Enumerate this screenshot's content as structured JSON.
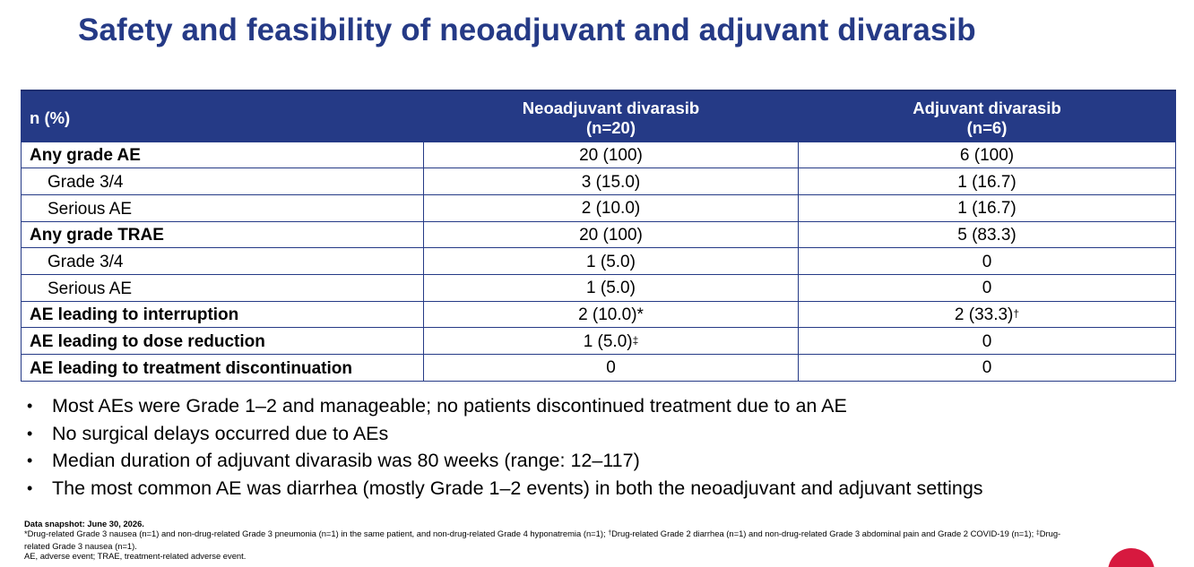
{
  "title": "Safety and feasibility of neoadjuvant and adjuvant divarasib",
  "table": {
    "headers": {
      "col1": "n (%)",
      "col2_line1": "Neoadjuvant divarasib",
      "col2_line2": "(n=20)",
      "col3_line1": "Adjuvant divarasib",
      "col3_line2": "(n=6)"
    },
    "rows": [
      {
        "label": "Any grade AE",
        "neo": "20 (100)",
        "neo_sup": "",
        "adj": "6 (100)",
        "adj_sup": ""
      },
      {
        "label": "Grade 3/4",
        "neo": "3 (15.0)",
        "neo_sup": "",
        "adj": "1 (16.7)",
        "adj_sup": ""
      },
      {
        "label": "Serious AE",
        "neo": "2 (10.0)",
        "neo_sup": "",
        "adj": "1 (16.7)",
        "adj_sup": ""
      },
      {
        "label": "Any grade TRAE",
        "neo": "20 (100)",
        "neo_sup": "",
        "adj": "5 (83.3)",
        "adj_sup": ""
      },
      {
        "label": "Grade 3/4",
        "neo": "1 (5.0)",
        "neo_sup": "",
        "adj": "0",
        "adj_sup": ""
      },
      {
        "label": "Serious AE",
        "neo": "1 (5.0)",
        "neo_sup": "",
        "adj": "0",
        "adj_sup": ""
      },
      {
        "label": "AE leading to interruption",
        "neo": "2 (10.0)*",
        "neo_sup": "",
        "adj": "2 (33.3)",
        "adj_sup": "†"
      },
      {
        "label": "AE leading to dose reduction",
        "neo": "1 (5.0)",
        "neo_sup": "‡",
        "adj": "0",
        "adj_sup": ""
      },
      {
        "label": "AE leading to treatment discontinuation",
        "neo": "0",
        "neo_sup": "",
        "adj": "0",
        "adj_sup": ""
      }
    ]
  },
  "bullets": [
    "Most AEs were Grade 1–2 and manageable; no patients discontinued treatment due to an AE",
    "No surgical delays occurred due to AEs",
    "Median duration of adjuvant divarasib was 80 weeks (range: 12–117)",
    "The most common AE was diarrhea (mostly Grade 1–2 events) in both the neoadjuvant and adjuvant settings"
  ],
  "bullet_glyph": "•",
  "footnotes": {
    "snapshot": "Data snapshot: June 30, 2026.",
    "note1_a": "*Drug-related Grade 3 nausea (n=1) and non-drug-related Grade 3 pneumonia (n=1) in the same patient, and non-drug-related Grade 4 hyponatremia (n=1); ",
    "dagger": "†",
    "note1_b": "Drug-related Grade 2 diarrhea (n=1) and non-drug-related Grade 3 abdominal pain and Grade 2 COVID-19 (n=1); ",
    "ddagger": "‡",
    "note1_c": "Drug-related Grade 3 nausea (n=1).",
    "abbrev": "AE, adverse event; TRAE, treatment-related adverse event."
  },
  "colors": {
    "title": "#253a86",
    "header_bg": "#253a86",
    "border": "#253a86",
    "badge": "#d7193f"
  }
}
